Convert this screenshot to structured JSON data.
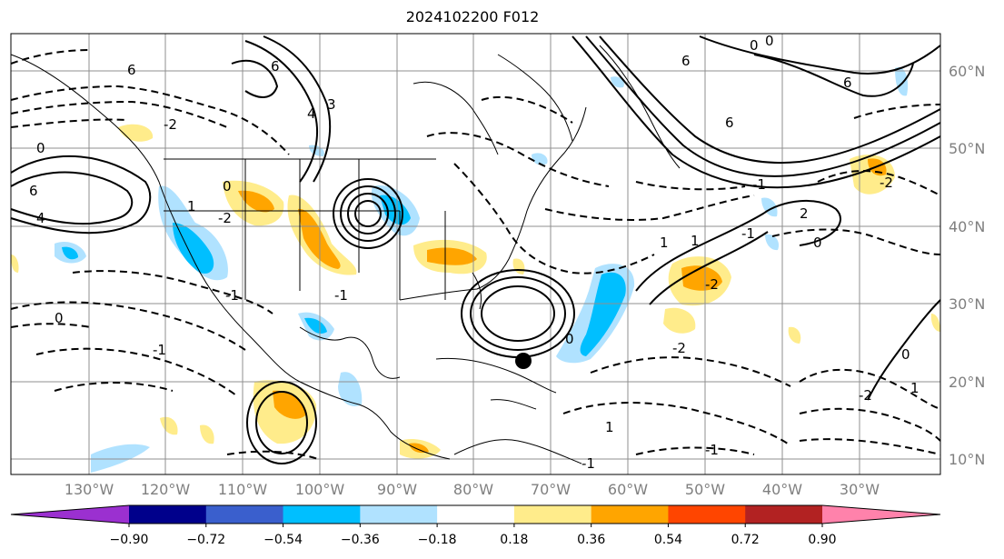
{
  "title": "2024102200 F012",
  "lat_labels": [
    "60°N",
    "50°N",
    "40°N",
    "30°N",
    "20°N",
    "10°N"
  ],
  "lon_labels": [
    "130°W",
    "120°W",
    "110°W",
    "100°W",
    "90°W",
    "80°W",
    "70°W",
    "60°W",
    "50°W",
    "40°W",
    "30°W"
  ],
  "colorbar": {
    "colors": [
      "#9b30d0",
      "#00008b",
      "#3a5fcd",
      "#00bfff",
      "#b0e2ff",
      "#ffffff",
      "#ffec8b",
      "#ffa500",
      "#ff4500",
      "#b22222",
      "#ff82ab"
    ],
    "tick_labels": [
      "−0.90",
      "−0.72",
      "−0.54",
      "−0.36",
      "−0.18",
      "0.18",
      "0.36",
      "0.54",
      "0.72",
      "0.90"
    ]
  },
  "contour_labels": [
    "6",
    "6",
    "6",
    "6",
    "6",
    "6",
    "0",
    "0",
    "0",
    "-2",
    "4",
    "4",
    "3",
    "1",
    "-2",
    "0",
    "-1",
    "-1",
    "-1",
    "0",
    "0",
    "-2",
    "1",
    "-2",
    "-2",
    "1",
    "2",
    "-1",
    "-2",
    "1",
    "0",
    "-1",
    "-1",
    "0",
    "1",
    "-1"
  ],
  "marker": "storm-position-dot"
}
